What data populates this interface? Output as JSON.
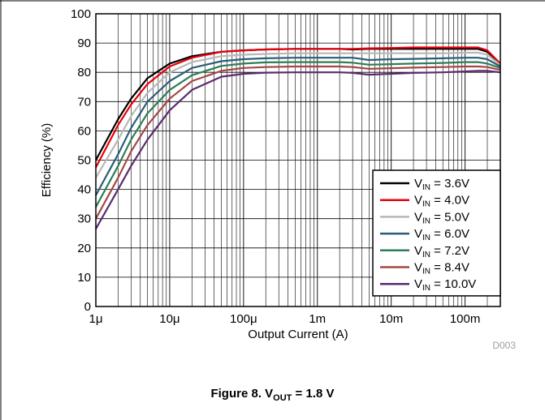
{
  "figure": {
    "caption_prefix": "Figure 8. V",
    "caption_sub": "OUT",
    "caption_suffix": " = 1.8 V",
    "code": "D003"
  },
  "chart_data": {
    "type": "line",
    "xlabel": "Output Current (A)",
    "ylabel": "Efficiency (%)",
    "xscale": "log",
    "xlim": [
      1e-06,
      0.3
    ],
    "ylim": [
      0,
      100
    ],
    "xticks": [
      {
        "value": 1e-06,
        "label": "1μ"
      },
      {
        "value": 1e-05,
        "label": "10μ"
      },
      {
        "value": 0.0001,
        "label": "100μ"
      },
      {
        "value": 0.001,
        "label": "1m"
      },
      {
        "value": 0.01,
        "label": "10m"
      },
      {
        "value": 0.1,
        "label": "100m"
      }
    ],
    "yticks": [
      0,
      10,
      20,
      30,
      40,
      50,
      60,
      70,
      80,
      90,
      100
    ],
    "grid": true,
    "legend_position": "bottom-right",
    "legend_prefix": "V",
    "legend_sub": "IN",
    "x": [
      1e-06,
      2e-06,
      3e-06,
      5e-06,
      1e-05,
      2e-05,
      5e-05,
      0.0001,
      0.0002,
      0.0005,
      0.001,
      0.002,
      0.003,
      0.005,
      0.01,
      0.02,
      0.05,
      0.1,
      0.15,
      0.2,
      0.3
    ],
    "series": [
      {
        "name": " = 3.6V",
        "color": "#000000",
        "values": [
          50,
          64,
          71,
          78,
          83,
          85.5,
          87,
          87.5,
          87.8,
          88,
          88,
          88,
          87.8,
          88,
          88,
          88,
          88,
          88,
          88,
          87,
          83
        ]
      },
      {
        "name": " = 4.0V",
        "color": "#e8000b",
        "values": [
          47.5,
          62,
          69,
          76,
          82,
          85,
          87,
          87.5,
          87.8,
          88,
          88,
          88,
          88,
          88.2,
          88.3,
          88.5,
          88.5,
          88.5,
          88.5,
          87.5,
          83
        ]
      },
      {
        "name": " = 5.0V",
        "color": "#b8b8b8",
        "values": [
          44,
          57,
          65,
          73,
          80,
          83.5,
          85.5,
          86,
          86.3,
          86.5,
          86.5,
          86.5,
          86.5,
          86.5,
          86.5,
          86.5,
          86.5,
          86.7,
          86.7,
          86,
          82.5
        ]
      },
      {
        "name": " = 6.0V",
        "color": "#2b5d78",
        "values": [
          38,
          52,
          61,
          70,
          77,
          81.5,
          83.8,
          84.5,
          84.8,
          85,
          85,
          85,
          85,
          84.2,
          84.5,
          84.6,
          84.8,
          85,
          85,
          84.5,
          82
        ]
      },
      {
        "name": " = 7.2V",
        "color": "#2e7d56",
        "values": [
          34,
          48,
          57,
          66,
          74,
          79,
          82.2,
          83,
          83.4,
          83.5,
          83.5,
          83.5,
          83.3,
          82.6,
          82.8,
          83,
          83.2,
          83.5,
          83.5,
          83,
          81.5
        ]
      },
      {
        "name": " = 8.4V",
        "color": "#a34846",
        "values": [
          30,
          44,
          53,
          62,
          71,
          77,
          80.5,
          81.5,
          81.8,
          82,
          82,
          82,
          81.8,
          81.2,
          81.4,
          81.6,
          81.8,
          82,
          82,
          81.8,
          80.8
        ]
      },
      {
        "name": " = 10.0V",
        "color": "#5b2a6e",
        "values": [
          26.5,
          40,
          48,
          57,
          67,
          74,
          78.5,
          79.5,
          79.9,
          80,
          80,
          80,
          79.8,
          79.2,
          79.5,
          79.8,
          80,
          80.3,
          80.5,
          80.5,
          80
        ]
      }
    ]
  }
}
